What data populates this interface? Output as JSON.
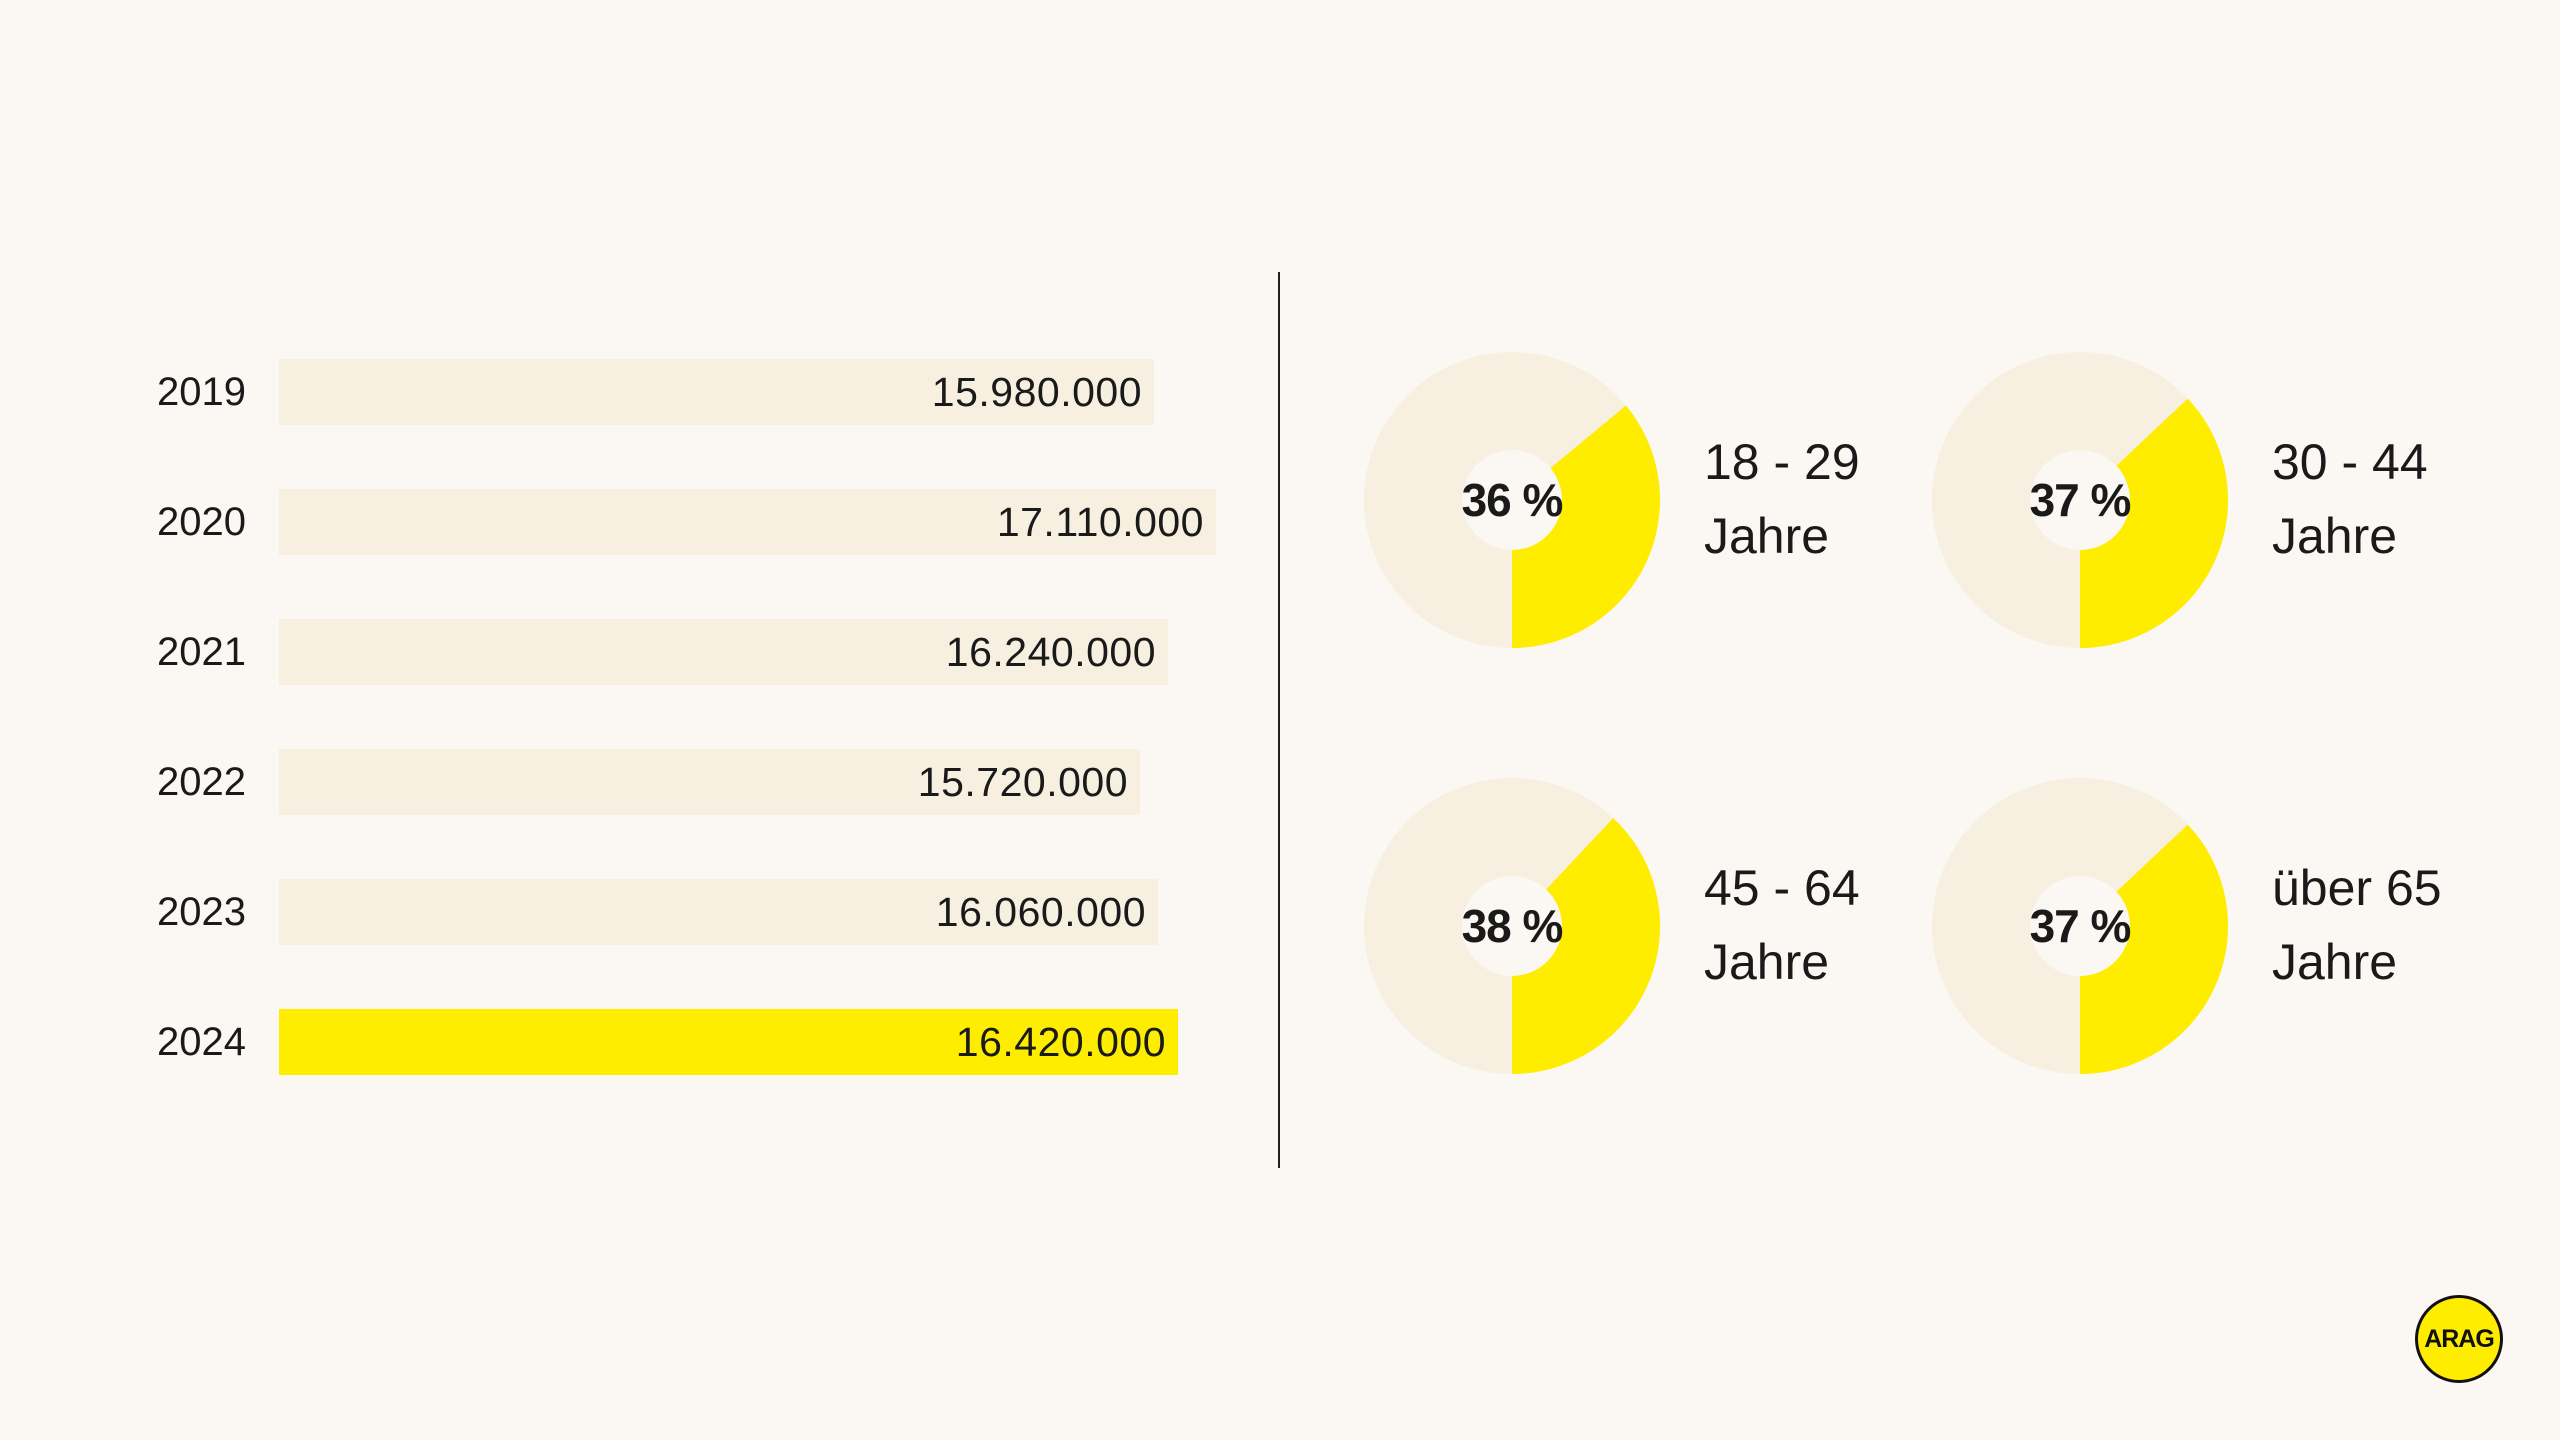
{
  "colors": {
    "background": "#fbf8f3",
    "bar_default": "#f7efe0",
    "bar_highlight": "#ffed00",
    "donut_fill": "#ffed00",
    "donut_track": "#f7efe0",
    "divider": "#222222"
  },
  "chart_data": [
    {
      "type": "bar",
      "orientation": "horizontal",
      "title": "",
      "xlabel": "",
      "ylabel": "",
      "xlim": [
        0,
        17500000
      ],
      "highlight_index": 5,
      "bars": [
        {
          "year": "2019",
          "value": 15980000,
          "label": "15.980.000"
        },
        {
          "year": "2020",
          "value": 17110000,
          "label": "17.110.000"
        },
        {
          "year": "2021",
          "value": 16240000,
          "label": "16.240.000"
        },
        {
          "year": "2022",
          "value": 15720000,
          "label": "15.720.000"
        },
        {
          "year": "2023",
          "value": 16060000,
          "label": "16.060.000"
        },
        {
          "year": "2024",
          "value": 16420000,
          "label": "16.420.000"
        }
      ]
    },
    {
      "type": "pie",
      "variant": "donut",
      "segments": [
        {
          "percent": 36,
          "label": "36 %",
          "age_line1": "18 - 29",
          "age_line2": "Jahre"
        },
        {
          "percent": 37,
          "label": "37 %",
          "age_line1": "30 - 44",
          "age_line2": "Jahre"
        },
        {
          "percent": 38,
          "label": "38 %",
          "age_line1": "45 - 64",
          "age_line2": "Jahre"
        },
        {
          "percent": 37,
          "label": "37 %",
          "age_line1": "über 65",
          "age_line2": "Jahre"
        }
      ]
    }
  ],
  "logo": {
    "text": "ARAG"
  }
}
